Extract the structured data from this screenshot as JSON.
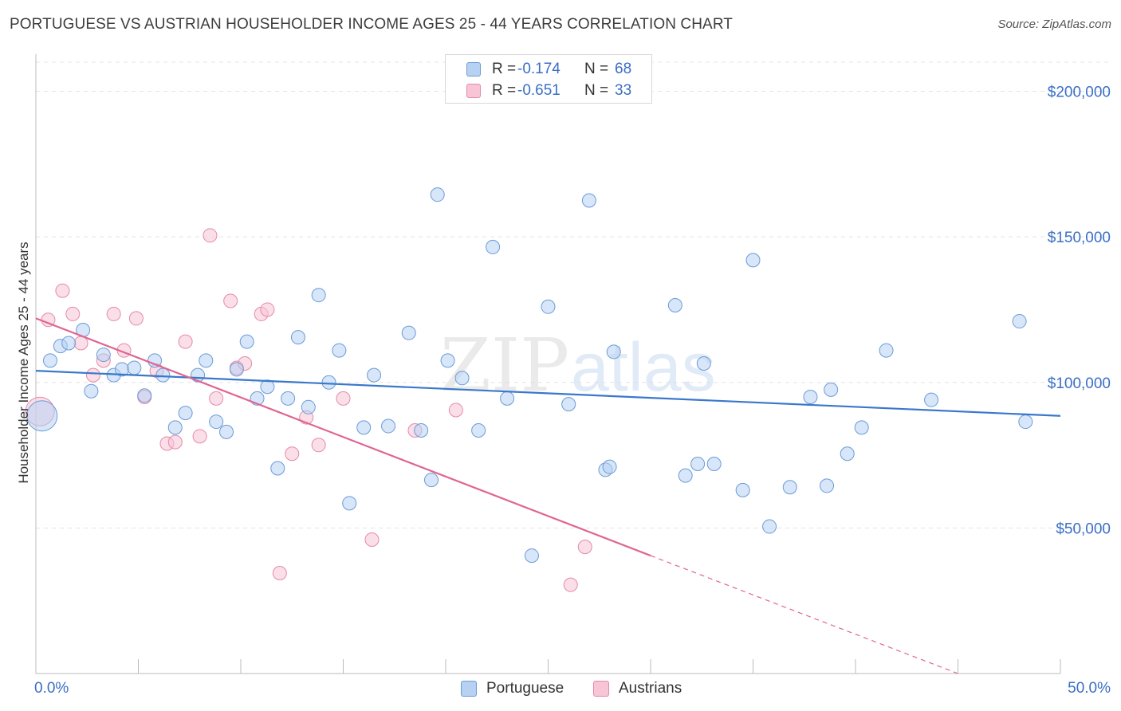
{
  "title": "PORTUGUESE VS AUSTRIAN HOUSEHOLDER INCOME AGES 25 - 44 YEARS CORRELATION CHART",
  "source": "Source: ZipAtlas.com",
  "watermark": {
    "zip": "ZIP",
    "atlas": "atlas"
  },
  "legend_top": {
    "rows": [
      {
        "r_label": "R =",
        "r_value": "-0.174",
        "n_label": "N =",
        "n_value": "68"
      },
      {
        "r_label": "R =",
        "r_value": "-0.651",
        "n_label": "N =",
        "n_value": "33"
      }
    ]
  },
  "legend_bottom": {
    "items": [
      {
        "label": "Portuguese"
      },
      {
        "label": "Austrians"
      }
    ]
  },
  "colors": {
    "portuguese_fill": "#b7d1f2",
    "portuguese_stroke": "#6c9bd8",
    "portuguese_line": "#3a78cc",
    "austrians_fill": "#f7c5d5",
    "austrians_stroke": "#e58aa8",
    "austrians_line": "#e06592",
    "tick_label": "#3a6fc4",
    "grid": "#e4e4e4"
  },
  "chart_data": {
    "type": "scatter",
    "title": "PORTUGUESE VS AUSTRIAN HOUSEHOLDER INCOME AGES 25 - 44 YEARS CORRELATION CHART",
    "xlabel": "",
    "ylabel": "Householder Income Ages 25 - 44 years",
    "xlim": [
      0,
      50
    ],
    "ylim": [
      0,
      210000
    ],
    "x_tick_labels": [
      "0.0%",
      "50.0%"
    ],
    "y_ticks": [
      50000,
      100000,
      150000,
      200000
    ],
    "y_tick_labels": [
      "$50,000",
      "$100,000",
      "$150,000",
      "$200,000"
    ],
    "grid": "horizontal dashed",
    "legend_position": "top-center and bottom",
    "series": [
      {
        "name": "Portuguese",
        "R": -0.174,
        "N": 68,
        "trend": {
          "x": [
            0,
            50
          ],
          "y": [
            104000,
            88500
          ]
        },
        "points": [
          [
            0.3,
            88500
          ],
          [
            0.7,
            107500
          ],
          [
            1.2,
            112500
          ],
          [
            1.6,
            113500
          ],
          [
            2.3,
            118000
          ],
          [
            2.7,
            97000
          ],
          [
            3.3,
            109500
          ],
          [
            3.8,
            102500
          ],
          [
            4.2,
            104500
          ],
          [
            4.8,
            105000
          ],
          [
            5.3,
            95500
          ],
          [
            5.8,
            107500
          ],
          [
            6.2,
            102500
          ],
          [
            6.8,
            84500
          ],
          [
            7.3,
            89500
          ],
          [
            7.9,
            102500
          ],
          [
            8.3,
            107500
          ],
          [
            8.8,
            86500
          ],
          [
            9.3,
            83000
          ],
          [
            9.8,
            104500
          ],
          [
            10.3,
            114000
          ],
          [
            10.8,
            94500
          ],
          [
            11.3,
            98500
          ],
          [
            11.8,
            70500
          ],
          [
            12.3,
            94500
          ],
          [
            12.8,
            115500
          ],
          [
            13.3,
            91500
          ],
          [
            13.8,
            130000
          ],
          [
            14.3,
            100000
          ],
          [
            14.8,
            111000
          ],
          [
            15.3,
            58500
          ],
          [
            16.0,
            84500
          ],
          [
            16.5,
            102500
          ],
          [
            17.2,
            85000
          ],
          [
            18.2,
            117000
          ],
          [
            18.8,
            83500
          ],
          [
            19.3,
            66500
          ],
          [
            19.6,
            164500
          ],
          [
            20.1,
            107500
          ],
          [
            20.8,
            101500
          ],
          [
            21.6,
            83500
          ],
          [
            22.3,
            146500
          ],
          [
            23.0,
            94500
          ],
          [
            24.2,
            40500
          ],
          [
            25.0,
            126000
          ],
          [
            26.0,
            92500
          ],
          [
            27.0,
            162500
          ],
          [
            27.8,
            70000
          ],
          [
            28.0,
            71000
          ],
          [
            28.2,
            110500
          ],
          [
            31.2,
            126500
          ],
          [
            31.7,
            68000
          ],
          [
            32.3,
            72000
          ],
          [
            32.6,
            106500
          ],
          [
            33.1,
            72000
          ],
          [
            34.5,
            63000
          ],
          [
            35.0,
            142000
          ],
          [
            35.8,
            50500
          ],
          [
            36.8,
            64000
          ],
          [
            37.8,
            95000
          ],
          [
            38.6,
            64500
          ],
          [
            38.8,
            97500
          ],
          [
            39.6,
            75500
          ],
          [
            40.3,
            84500
          ],
          [
            41.5,
            111000
          ],
          [
            43.7,
            94000
          ],
          [
            48.0,
            121000
          ],
          [
            48.3,
            86500
          ]
        ]
      },
      {
        "name": "Austrians",
        "R": -0.651,
        "N": 33,
        "trend": {
          "x": [
            0,
            30
          ],
          "y": [
            122000,
            40500
          ]
        },
        "trend_extension": {
          "x": [
            30,
            45
          ],
          "y": [
            40500,
            0
          ]
        },
        "points": [
          [
            0.2,
            90000
          ],
          [
            0.6,
            121500
          ],
          [
            1.3,
            131500
          ],
          [
            1.8,
            123500
          ],
          [
            2.2,
            113500
          ],
          [
            2.8,
            102500
          ],
          [
            3.3,
            107500
          ],
          [
            3.8,
            123500
          ],
          [
            4.3,
            111000
          ],
          [
            4.9,
            122000
          ],
          [
            5.3,
            95000
          ],
          [
            5.9,
            104000
          ],
          [
            6.4,
            79000
          ],
          [
            6.8,
            79500
          ],
          [
            7.3,
            114000
          ],
          [
            8.0,
            81500
          ],
          [
            8.5,
            150500
          ],
          [
            8.8,
            94500
          ],
          [
            9.5,
            128000
          ],
          [
            9.8,
            105000
          ],
          [
            10.2,
            106500
          ],
          [
            11.0,
            123500
          ],
          [
            11.3,
            125000
          ],
          [
            11.9,
            34500
          ],
          [
            12.5,
            75500
          ],
          [
            13.2,
            88000
          ],
          [
            13.8,
            78500
          ],
          [
            15.0,
            94500
          ],
          [
            16.4,
            46000
          ],
          [
            18.5,
            83500
          ],
          [
            20.5,
            90500
          ],
          [
            26.1,
            30500
          ],
          [
            26.8,
            43500
          ]
        ]
      }
    ]
  }
}
